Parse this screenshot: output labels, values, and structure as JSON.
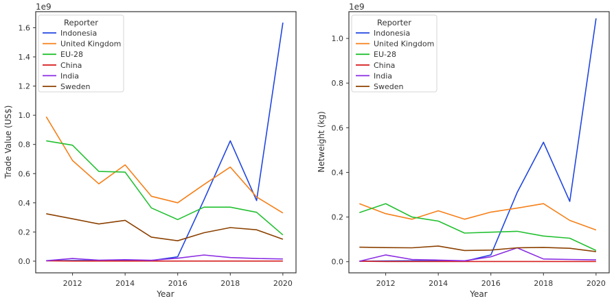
{
  "chart_data": [
    {
      "type": "line",
      "title": "",
      "xlabel": "Year",
      "ylabel": "Trade Value (US$)",
      "offset_label": "1e9",
      "xlim": [
        2010.6,
        2020.5
      ],
      "ylim": [
        -0.08,
        1.71
      ],
      "xticks": [
        2012,
        2014,
        2016,
        2018,
        2020
      ],
      "yticks": [
        0.0,
        0.2,
        0.4,
        0.6,
        0.8,
        1.0,
        1.2,
        1.4,
        1.6
      ],
      "grid": false,
      "legend_title": "Reporter",
      "legend_position": "top-left",
      "x": [
        2011,
        2012,
        2013,
        2014,
        2015,
        2016,
        2017,
        2018,
        2019,
        2020
      ],
      "series": [
        {
          "name": "Indonesia",
          "color": "#1f45e0",
          "values": [
            0.003,
            0.004,
            0.005,
            0.006,
            0.004,
            0.03,
            0.42,
            0.825,
            0.415,
            1.635
          ]
        },
        {
          "name": "United Kingdom",
          "color": "#f57f17",
          "values": [
            0.99,
            0.69,
            0.53,
            0.66,
            0.445,
            0.4,
            0.525,
            0.645,
            0.44,
            0.33
          ]
        },
        {
          "name": "EU-28",
          "color": "#22c030",
          "values": [
            0.825,
            0.795,
            0.615,
            0.61,
            0.365,
            0.285,
            0.37,
            0.37,
            0.335,
            0.18
          ]
        },
        {
          "name": "China",
          "color": "#d61f1f",
          "values": [
            0.002,
            0.001,
            0.001,
            0.001,
            0.001,
            0.001,
            0.001,
            0.001,
            0.001,
            0.001
          ]
        },
        {
          "name": "India",
          "color": "#8a2be2",
          "values": [
            0.003,
            0.018,
            0.007,
            0.01,
            0.006,
            0.02,
            0.042,
            0.025,
            0.018,
            0.015
          ]
        },
        {
          "name": "Sweden",
          "color": "#8b4000",
          "values": [
            0.325,
            0.29,
            0.255,
            0.28,
            0.165,
            0.14,
            0.195,
            0.23,
            0.215,
            0.15
          ]
        }
      ]
    },
    {
      "type": "line",
      "title": "",
      "xlabel": "Year",
      "ylabel": "Netweight (kg)",
      "offset_label": "1e9",
      "xlim": [
        2010.6,
        2020.5
      ],
      "ylim": [
        -0.05,
        1.12
      ],
      "xticks": [
        2012,
        2014,
        2016,
        2018,
        2020
      ],
      "yticks": [
        0.0,
        0.2,
        0.4,
        0.6,
        0.8,
        1.0
      ],
      "grid": false,
      "legend_title": "Reporter",
      "legend_position": "top-left",
      "x": [
        2011,
        2012,
        2013,
        2014,
        2015,
        2016,
        2017,
        2018,
        2019,
        2020
      ],
      "series": [
        {
          "name": "Indonesia",
          "color": "#1f45e0",
          "values": [
            0.002,
            0.003,
            0.004,
            0.003,
            0.002,
            0.03,
            0.31,
            0.535,
            0.27,
            1.09
          ]
        },
        {
          "name": "United Kingdom",
          "color": "#f57f17",
          "values": [
            0.26,
            0.215,
            0.19,
            0.228,
            0.19,
            0.222,
            0.24,
            0.26,
            0.185,
            0.142
          ]
        },
        {
          "name": "EU-28",
          "color": "#22c030",
          "values": [
            0.22,
            0.26,
            0.2,
            0.182,
            0.128,
            0.132,
            0.136,
            0.115,
            0.105,
            0.05
          ]
        },
        {
          "name": "China",
          "color": "#d61f1f",
          "values": [
            0.002,
            0.001,
            0.001,
            0.001,
            0.001,
            0.001,
            0.001,
            0.001,
            0.001,
            0.001
          ]
        },
        {
          "name": "India",
          "color": "#8a2be2",
          "values": [
            0.002,
            0.03,
            0.01,
            0.007,
            0.004,
            0.022,
            0.062,
            0.012,
            0.01,
            0.008
          ]
        },
        {
          "name": "Sweden",
          "color": "#8b4000",
          "values": [
            0.065,
            0.063,
            0.062,
            0.07,
            0.05,
            0.052,
            0.062,
            0.064,
            0.06,
            0.045
          ]
        }
      ]
    }
  ]
}
